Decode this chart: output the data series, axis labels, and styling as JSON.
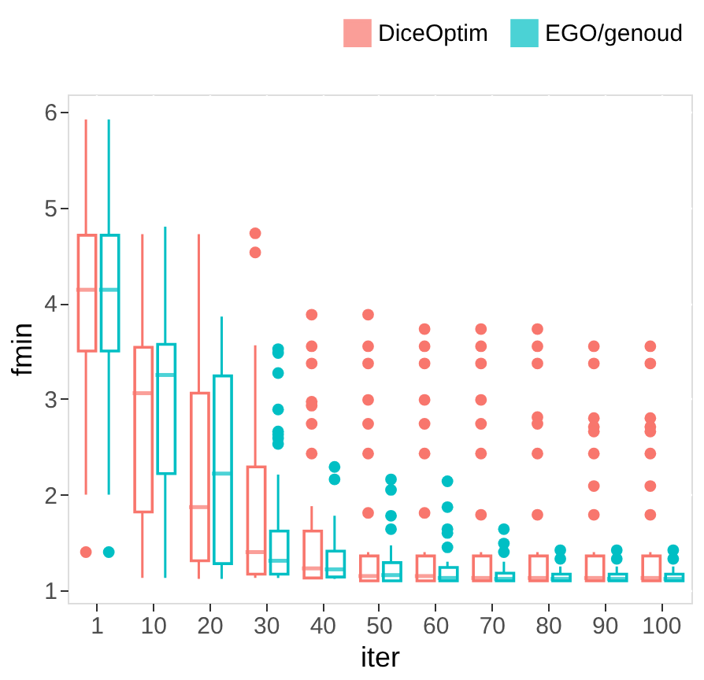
{
  "chart_data": {
    "type": "box",
    "xlabel": "iter",
    "ylabel": "fmin",
    "categories": [
      "1",
      "10",
      "20",
      "30",
      "40",
      "50",
      "60",
      "70",
      "80",
      "90",
      "100"
    ],
    "ylim": [
      0.87,
      6.18
    ],
    "yticks": [
      1,
      2,
      3,
      4,
      5,
      6
    ],
    "grid": true,
    "legend": "top right",
    "series": [
      {
        "name": "DiceOptim",
        "color": "#f8766d",
        "boxes": [
          {
            "low": 2.0,
            "q1": 3.5,
            "median": 4.14,
            "q3": 4.71,
            "high": 5.92,
            "outliers": [
              1.4
            ]
          },
          {
            "low": 1.13,
            "q1": 1.82,
            "median": 3.06,
            "q3": 3.54,
            "high": 4.72
          },
          {
            "low": 1.12,
            "q1": 1.31,
            "median": 1.87,
            "q3": 3.06,
            "high": 4.72
          },
          {
            "low": 1.13,
            "q1": 1.17,
            "median": 1.4,
            "q3": 2.29,
            "high": 3.56,
            "outliers": [
              4.73,
              4.53
            ]
          },
          {
            "low": 1.12,
            "q1": 1.13,
            "median": 1.23,
            "q3": 1.62,
            "high": 1.88,
            "outliers": [
              3.88,
              3.55,
              3.37,
              2.97,
              2.93,
              2.74,
              2.43
            ]
          },
          {
            "low": 1.1,
            "q1": 1.1,
            "median": 1.15,
            "q3": 1.36,
            "high": 1.4,
            "outliers": [
              3.88,
              3.55,
              3.37,
              2.99,
              2.74,
              2.43,
              1.81
            ]
          },
          {
            "low": 1.1,
            "q1": 1.1,
            "median": 1.15,
            "q3": 1.36,
            "high": 1.4,
            "outliers": [
              3.73,
              3.55,
              3.37,
              2.99,
              2.74,
              2.43,
              1.81
            ]
          },
          {
            "low": 1.1,
            "q1": 1.1,
            "median": 1.13,
            "q3": 1.36,
            "high": 1.4,
            "outliers": [
              3.73,
              3.55,
              3.37,
              2.99,
              2.74,
              2.43,
              1.79
            ]
          },
          {
            "low": 1.1,
            "q1": 1.1,
            "median": 1.13,
            "q3": 1.36,
            "high": 1.4,
            "outliers": [
              3.73,
              3.55,
              3.37,
              2.81,
              2.74,
              2.43,
              1.79
            ]
          },
          {
            "low": 1.1,
            "q1": 1.1,
            "median": 1.13,
            "q3": 1.36,
            "high": 1.4,
            "outliers": [
              3.55,
              3.37,
              2.8,
              2.71,
              2.66,
              2.43,
              2.09,
              1.79
            ]
          },
          {
            "low": 1.1,
            "q1": 1.1,
            "median": 1.13,
            "q3": 1.36,
            "high": 1.4,
            "outliers": [
              3.55,
              3.37,
              2.8,
              2.71,
              2.66,
              2.43,
              2.09,
              1.79
            ]
          }
        ]
      },
      {
        "name": "EGO/genoud",
        "color": "#00bfc4",
        "boxes": [
          {
            "low": 2.0,
            "q1": 3.5,
            "median": 4.14,
            "q3": 4.71,
            "high": 5.92,
            "outliers": [
              1.4
            ]
          },
          {
            "low": 1.13,
            "q1": 2.22,
            "median": 3.25,
            "q3": 3.57,
            "high": 4.8
          },
          {
            "low": 1.12,
            "q1": 1.28,
            "median": 2.22,
            "q3": 3.24,
            "high": 3.86
          },
          {
            "low": 1.13,
            "q1": 1.17,
            "median": 1.31,
            "q3": 1.62,
            "high": 2.21,
            "outliers": [
              3.52,
              3.48,
              3.27,
              2.89,
              2.66,
              2.63,
              2.59,
              2.53
            ]
          },
          {
            "low": 1.12,
            "q1": 1.14,
            "median": 1.22,
            "q3": 1.41,
            "high": 1.78,
            "outliers": [
              2.29,
              2.16
            ]
          },
          {
            "low": 1.1,
            "q1": 1.1,
            "median": 1.16,
            "q3": 1.29,
            "high": 1.47,
            "outliers": [
              2.16,
              2.05,
              1.78,
              1.64
            ]
          },
          {
            "low": 1.1,
            "q1": 1.1,
            "median": 1.13,
            "q3": 1.24,
            "high": 1.3,
            "outliers": [
              2.14,
              1.87,
              1.64,
              1.6,
              1.45
            ]
          },
          {
            "low": 1.1,
            "q1": 1.1,
            "median": 1.12,
            "q3": 1.18,
            "high": 1.3,
            "outliers": [
              1.64,
              1.49,
              1.4
            ]
          },
          {
            "low": 1.1,
            "q1": 1.1,
            "median": 1.12,
            "q3": 1.17,
            "high": 1.25,
            "outliers": [
              1.42,
              1.33
            ]
          },
          {
            "low": 1.1,
            "q1": 1.1,
            "median": 1.12,
            "q3": 1.17,
            "high": 1.25,
            "outliers": [
              1.42,
              1.33
            ]
          },
          {
            "low": 1.1,
            "q1": 1.1,
            "median": 1.12,
            "q3": 1.17,
            "high": 1.25,
            "outliers": [
              1.42,
              1.33
            ]
          }
        ]
      }
    ]
  }
}
